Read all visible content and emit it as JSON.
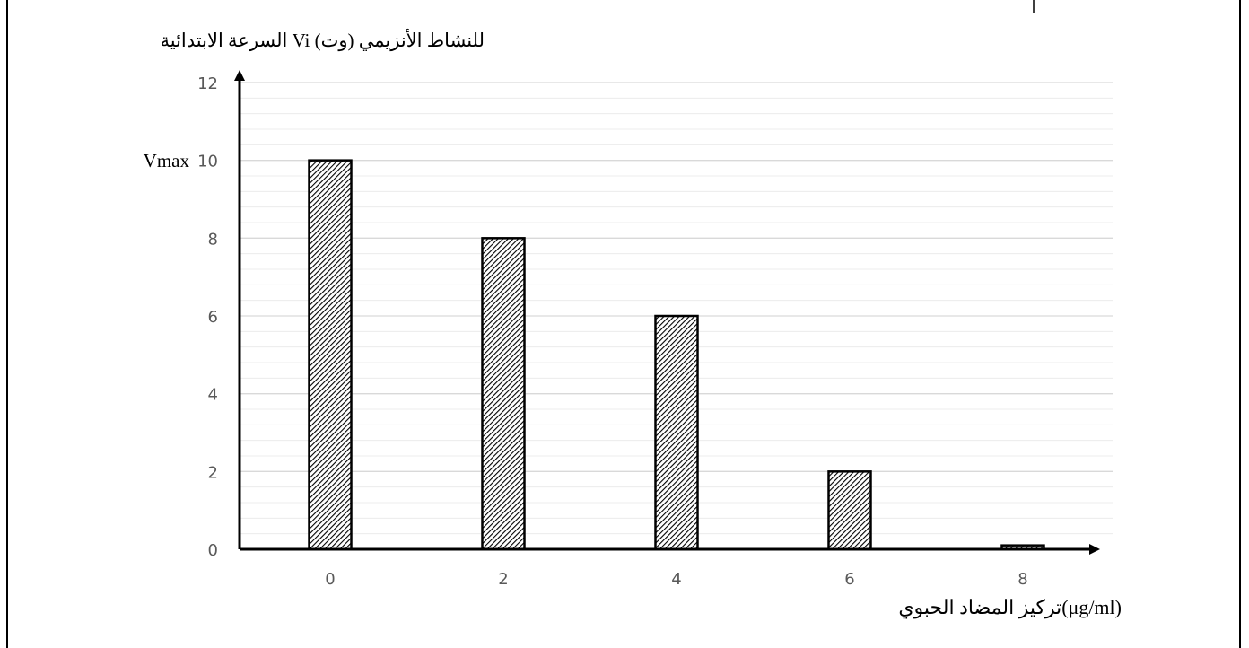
{
  "chart_data": {
    "type": "bar",
    "ylabel": "السرعة الابتدائية Vi للنشاط الأنزيمي (وت)",
    "xlabel": "تركيز المضاد الحبوي(μg/ml)",
    "vmax_label": "Vmax",
    "categories": [
      "0",
      "2",
      "4",
      "6",
      "8"
    ],
    "values": [
      10,
      8,
      6,
      2,
      0.1
    ],
    "ylim": [
      0,
      12
    ],
    "yticks": [
      "0",
      "2",
      "4",
      "6",
      "8",
      "10",
      "12"
    ],
    "grid": true,
    "bar_fill": "hatched"
  },
  "colors": {
    "axis": "#000000",
    "grid_major": "#d9d9d9",
    "grid_minor": "#ececec",
    "tick_text": "#595959",
    "bar_stroke": "#000000"
  }
}
